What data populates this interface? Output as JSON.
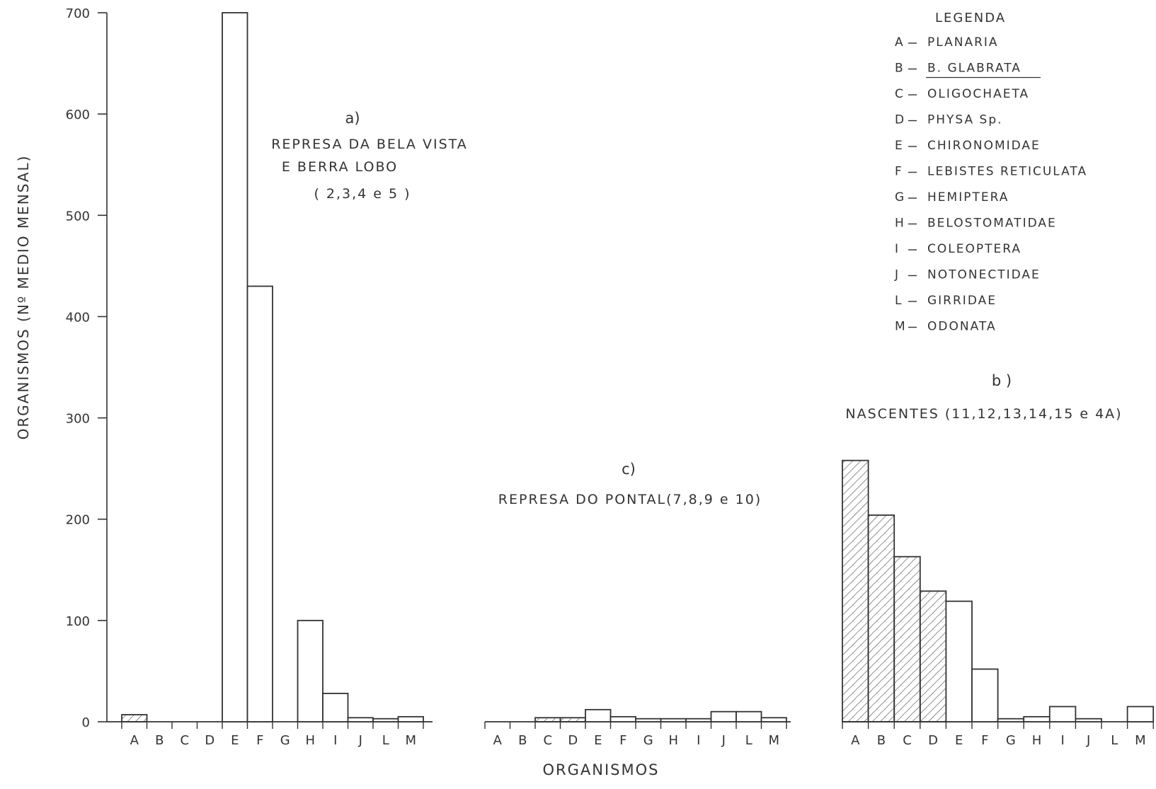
{
  "figure": {
    "ylabel": "ORGANISMOS (Nº MEDIO MENSAL)",
    "xlabel": "ORGANISMOS",
    "yticks": [
      0,
      100,
      200,
      300,
      400,
      500,
      600,
      700
    ],
    "ylim": [
      0,
      700
    ],
    "hatch_color": "#555555",
    "ink_color": "#333333"
  },
  "legend": {
    "title": "LEGENDA",
    "items": [
      {
        "code": "A",
        "name": "PLANARIA"
      },
      {
        "code": "B",
        "name": "B. GLABRATA"
      },
      {
        "code": "C",
        "name": "OLIGOCHAETA"
      },
      {
        "code": "D",
        "name": "PHYSA Sp."
      },
      {
        "code": "E",
        "name": "CHIRONOMIDAE"
      },
      {
        "code": "F",
        "name": "LEBISTES RETICULATA"
      },
      {
        "code": "G",
        "name": "HEMIPTERA"
      },
      {
        "code": "H",
        "name": "BELOSTOMATIDAE"
      },
      {
        "code": "I",
        "name": "COLEOPTERA"
      },
      {
        "code": "J",
        "name": "NOTONECTIDAE"
      },
      {
        "code": "L",
        "name": "GIRRIDAE"
      },
      {
        "code": "M",
        "name": "ODONATA"
      }
    ]
  },
  "chart_data": [
    {
      "type": "bar",
      "title": "a)",
      "subtitle": [
        "REPRESA DA BELA VISTA",
        "E BERRA LOBO",
        "( 2,3,4 e 5 )"
      ],
      "categories": [
        "A",
        "B",
        "C",
        "D",
        "E",
        "F",
        "G",
        "H",
        "I",
        "J",
        "L",
        "M"
      ],
      "values": [
        7,
        0,
        0,
        0,
        700,
        430,
        0,
        100,
        28,
        4,
        3,
        5
      ],
      "hatched": [
        true,
        false,
        false,
        false,
        false,
        false,
        false,
        false,
        false,
        false,
        false,
        false
      ],
      "ylim": [
        0,
        700
      ]
    },
    {
      "type": "bar",
      "title": "c)",
      "subtitle": [
        "REPRESA DO PONTAL(7,8,9 e 10)"
      ],
      "categories": [
        "A",
        "B",
        "C",
        "D",
        "E",
        "F",
        "G",
        "H",
        "I",
        "J",
        "L",
        "M"
      ],
      "values": [
        0,
        0,
        4,
        4,
        12,
        5,
        3,
        3,
        3,
        10,
        10,
        4
      ],
      "hatched": [
        true,
        true,
        true,
        true,
        false,
        false,
        false,
        false,
        false,
        false,
        false,
        false
      ],
      "ylim": [
        0,
        700
      ]
    },
    {
      "type": "bar",
      "title": "b )",
      "subtitle": [
        "NASCENTES (11,12,13,14,15 e 4A)"
      ],
      "categories": [
        "A",
        "B",
        "C",
        "D",
        "E",
        "F",
        "G",
        "H",
        "I",
        "J",
        "L",
        "M"
      ],
      "values": [
        258,
        204,
        163,
        129,
        119,
        52,
        3,
        5,
        15,
        3,
        0,
        15
      ],
      "hatched": [
        true,
        true,
        true,
        true,
        false,
        false,
        false,
        false,
        false,
        false,
        false,
        false
      ],
      "ylim": [
        0,
        700
      ]
    }
  ]
}
